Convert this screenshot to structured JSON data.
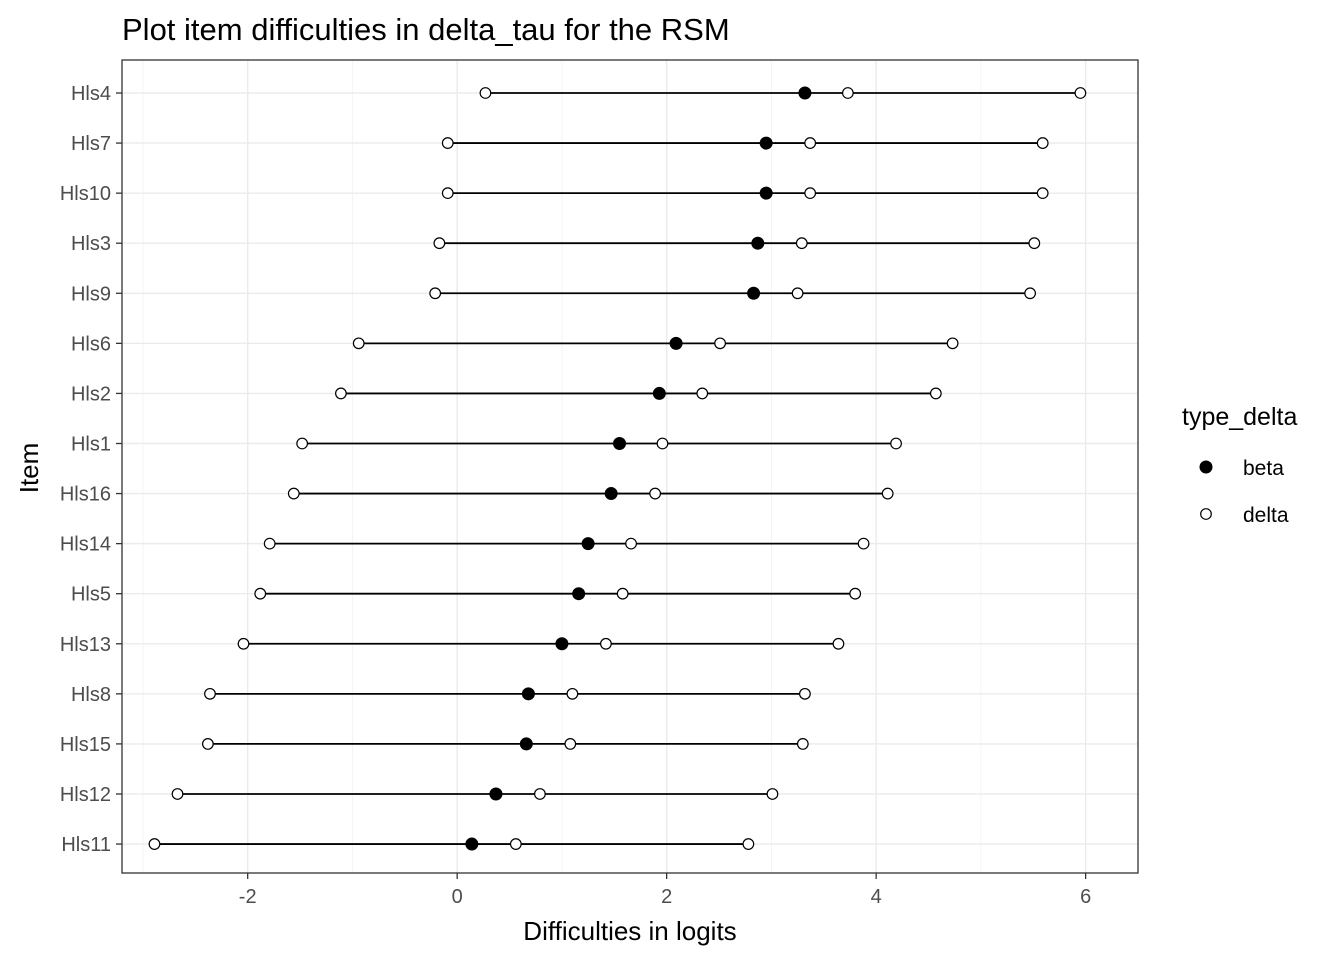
{
  "chart_data": {
    "type": "dot-range",
    "title": "Plot item difficulties in delta_tau for the RSM",
    "xlabel": "Difficulties in logits",
    "ylabel": "Item",
    "xlim": [
      -3.2,
      6.5
    ],
    "xticks": [
      -2,
      0,
      2,
      4,
      6
    ],
    "xtick_labels": [
      "-2",
      "0",
      "2",
      "4",
      "6"
    ],
    "grid": true,
    "legend": {
      "title": "type_delta",
      "position": "right",
      "entries": [
        {
          "label": "beta",
          "marker": "filled-circle"
        },
        {
          "label": "delta",
          "marker": "open-circle"
        }
      ]
    },
    "items": [
      {
        "name": "Hls4",
        "beta": 3.32,
        "delta": [
          0.27,
          3.73,
          5.95
        ]
      },
      {
        "name": "Hls7",
        "beta": 2.95,
        "delta": [
          -0.09,
          3.37,
          5.59
        ]
      },
      {
        "name": "Hls10",
        "beta": 2.95,
        "delta": [
          -0.09,
          3.37,
          5.59
        ]
      },
      {
        "name": "Hls3",
        "beta": 2.87,
        "delta": [
          -0.17,
          3.29,
          5.51
        ]
      },
      {
        "name": "Hls9",
        "beta": 2.83,
        "delta": [
          -0.21,
          3.25,
          5.47
        ]
      },
      {
        "name": "Hls6",
        "beta": 2.09,
        "delta": [
          -0.94,
          2.51,
          4.73
        ]
      },
      {
        "name": "Hls2",
        "beta": 1.93,
        "delta": [
          -1.11,
          2.34,
          4.57
        ]
      },
      {
        "name": "Hls1",
        "beta": 1.55,
        "delta": [
          -1.48,
          1.96,
          4.19
        ]
      },
      {
        "name": "Hls16",
        "beta": 1.47,
        "delta": [
          -1.56,
          1.89,
          4.11
        ]
      },
      {
        "name": "Hls14",
        "beta": 1.25,
        "delta": [
          -1.79,
          1.66,
          3.88
        ]
      },
      {
        "name": "Hls5",
        "beta": 1.16,
        "delta": [
          -1.88,
          1.58,
          3.8
        ]
      },
      {
        "name": "Hls13",
        "beta": 1.0,
        "delta": [
          -2.04,
          1.42,
          3.64
        ]
      },
      {
        "name": "Hls8",
        "beta": 0.68,
        "delta": [
          -2.36,
          1.1,
          3.32
        ]
      },
      {
        "name": "Hls15",
        "beta": 0.66,
        "delta": [
          -2.38,
          1.08,
          3.3
        ]
      },
      {
        "name": "Hls12",
        "beta": 0.37,
        "delta": [
          -2.67,
          0.79,
          3.01
        ]
      },
      {
        "name": "Hls11",
        "beta": 0.14,
        "delta": [
          -2.89,
          0.56,
          2.78
        ]
      }
    ]
  }
}
